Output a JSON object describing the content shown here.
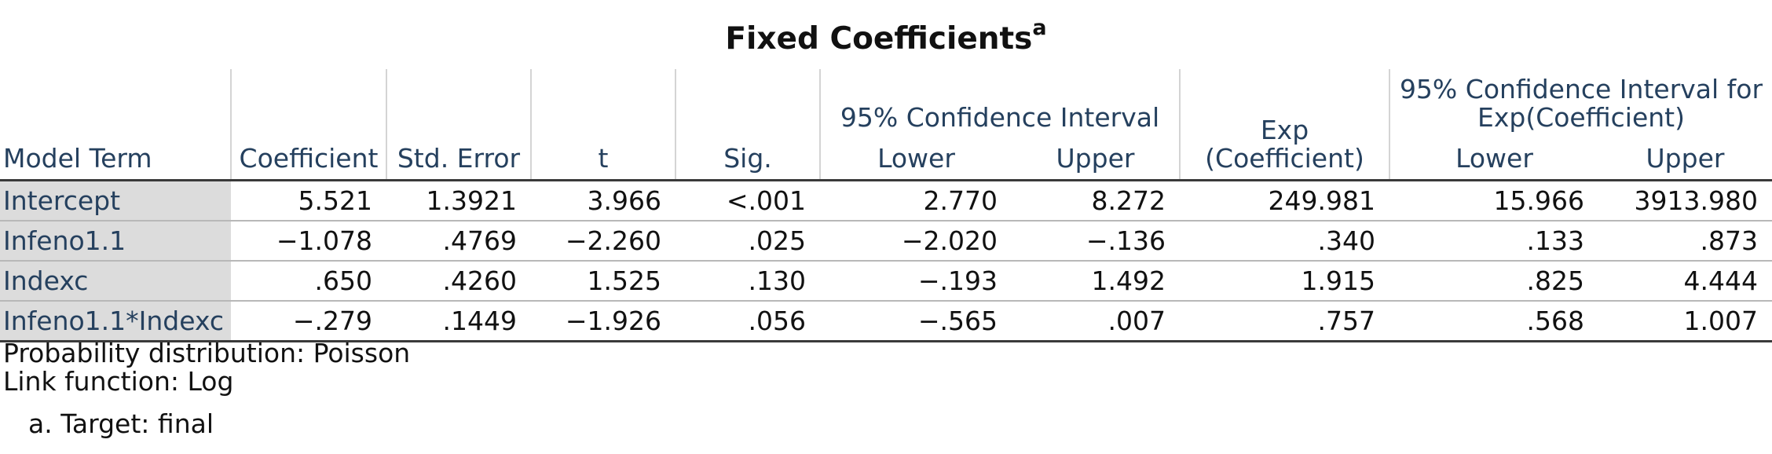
{
  "title": "Fixed Coefficients",
  "title_superscript": "a",
  "headers": {
    "model_term": "Model Term",
    "coefficient": "Coefficient",
    "std_error": "Std. Error",
    "t": "t",
    "sig": "Sig.",
    "ci_group": "95% Confidence Interval",
    "exp_line1": "Exp",
    "exp_line2": "(Coefficient)",
    "exp_ci_group_line1": "95% Confidence Interval for",
    "exp_ci_group_line2": "Exp(Coefficient)",
    "lower": "Lower",
    "upper": "Upper"
  },
  "rows": [
    {
      "term": "Intercept",
      "coefficient": "5.521",
      "std_error": "1.3921",
      "t": "3.966",
      "sig": "<.001",
      "ci_lower": "2.770",
      "ci_upper": "8.272",
      "exp": "249.981",
      "exp_lower": "15.966",
      "exp_upper": "3913.980"
    },
    {
      "term": "Infeno1.1",
      "coefficient": "−1.078",
      "std_error": ".4769",
      "t": "−2.260",
      "sig": ".025",
      "ci_lower": "−2.020",
      "ci_upper": "−.136",
      "exp": ".340",
      "exp_lower": ".133",
      "exp_upper": ".873"
    },
    {
      "term": "Indexc",
      "coefficient": ".650",
      "std_error": ".4260",
      "t": "1.525",
      "sig": ".130",
      "ci_lower": "−.193",
      "ci_upper": "1.492",
      "exp": "1.915",
      "exp_lower": ".825",
      "exp_upper": "4.444"
    },
    {
      "term": "Infeno1.1*Indexc",
      "coefficient": "−.279",
      "std_error": ".1449",
      "t": "−1.926",
      "sig": ".056",
      "ci_lower": "−.565",
      "ci_upper": ".007",
      "exp": ".757",
      "exp_lower": ".568",
      "exp_upper": "1.007"
    }
  ],
  "footnotes": {
    "distribution": "Probability distribution: Poisson",
    "link": "Link function: Log",
    "a": "a. Target: final"
  }
}
